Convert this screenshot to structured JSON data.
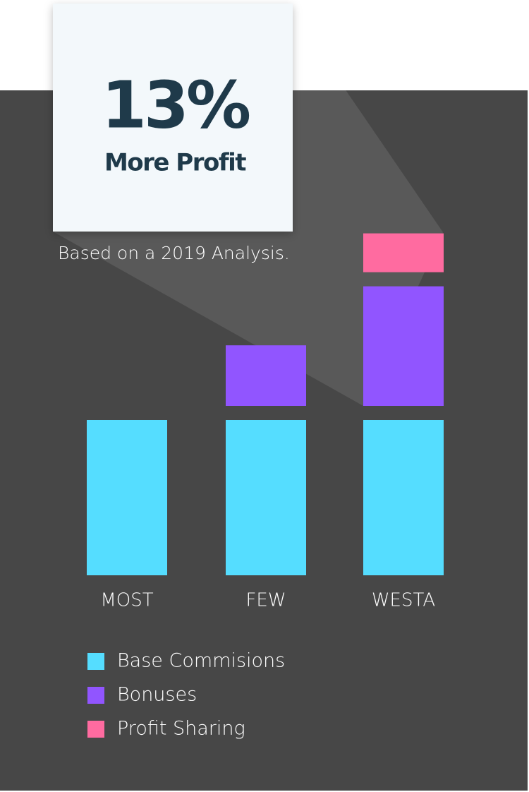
{
  "chart_data": {
    "type": "stacked-bar",
    "callout_value": "13%",
    "callout_label": "More Profit",
    "subtitle": "Based on a 2019 Analysis.",
    "categories": [
      "MOST",
      "FEW",
      "WESTA"
    ],
    "series": [
      {
        "name": "Base Commisions",
        "color": "#55ddff",
        "values": [
          100,
          100,
          100
        ]
      },
      {
        "name": "Bonuses",
        "color": "#9155ff",
        "values": [
          null,
          39,
          77
        ]
      },
      {
        "name": "Profit Sharing",
        "color": "#ff6ba0",
        "values": [
          null,
          null,
          25
        ]
      }
    ]
  }
}
